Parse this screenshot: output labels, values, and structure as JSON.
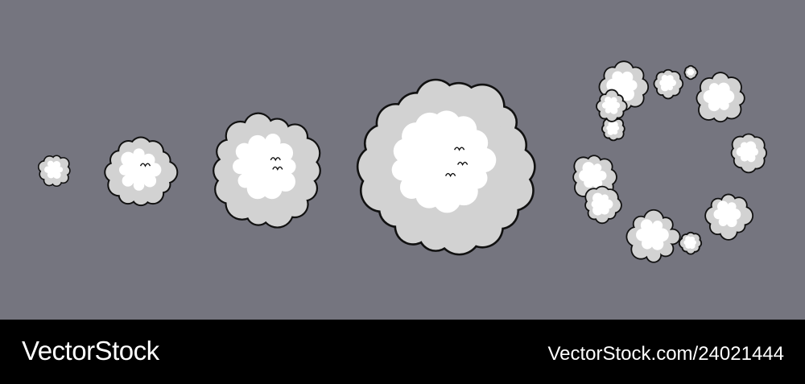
{
  "colors": {
    "background": "#75757f",
    "outline": "#111111",
    "cloud_shade": "#d2d2d2",
    "cloud_light": "#ffffff",
    "footer": "#000000",
    "footer_text": "#ffffff"
  },
  "illustration": {
    "frames": [
      {
        "name": "tiny-puff"
      },
      {
        "name": "small-puff"
      },
      {
        "name": "medium-puff"
      },
      {
        "name": "large-puff"
      },
      {
        "name": "dissipating-ring"
      }
    ]
  },
  "footer": {
    "brand_name": "VectorStock",
    "stock_id": "VectorStock.com/24021444"
  }
}
